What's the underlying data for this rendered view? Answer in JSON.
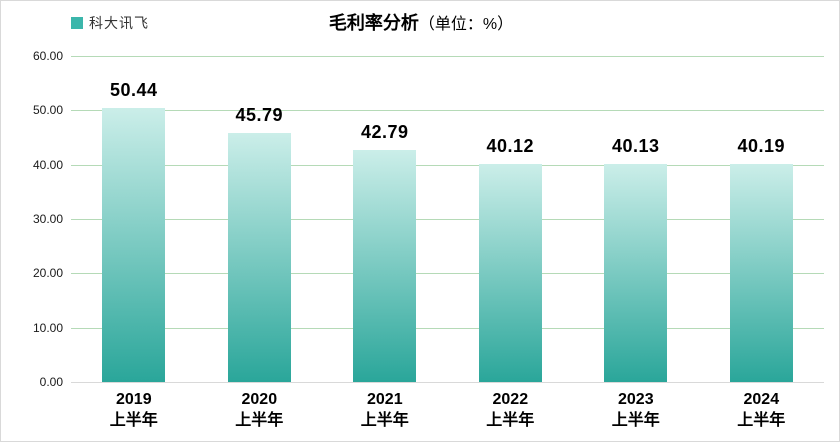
{
  "header": {
    "legend": {
      "label": "科大讯飞",
      "swatch_color": "#3bb6ab"
    },
    "title": {
      "main": "毛利率分析",
      "unit_suffix": "（单位：%）"
    }
  },
  "chart_data": {
    "type": "bar",
    "title": "毛利率分析（单位：%）",
    "legend": [
      "科大讯飞"
    ],
    "legend_position": "top-left",
    "categories": [
      {
        "line1": "2019",
        "line2": "上半年"
      },
      {
        "line1": "2020",
        "line2": "上半年"
      },
      {
        "line1": "2021",
        "line2": "上半年"
      },
      {
        "line1": "2022",
        "line2": "上半年"
      },
      {
        "line1": "2023",
        "line2": "上半年"
      },
      {
        "line1": "2024",
        "line2": "上半年"
      }
    ],
    "series": [
      {
        "name": "科大讯飞",
        "values": [
          50.44,
          45.79,
          42.79,
          40.12,
          40.13,
          40.19
        ]
      }
    ],
    "data_labels": [
      "50.44",
      "45.79",
      "42.79",
      "40.12",
      "40.13",
      "40.19"
    ],
    "ylim": [
      0,
      60
    ],
    "ytick_step": 10,
    "ytick_labels": [
      "60.00",
      "50.00",
      "40.00",
      "30.00",
      "20.00",
      "10.00",
      "0.00"
    ],
    "grid": true,
    "colors": {
      "bar_gradient_top": "#cbeee9",
      "bar_gradient_bottom": "#2aa69a",
      "gridline": "#b5dab7",
      "axis_baseline": "#d9d9d9",
      "text": "#000000"
    }
  }
}
